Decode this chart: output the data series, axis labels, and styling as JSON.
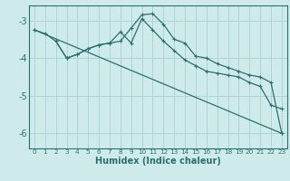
{
  "xlabel": "Humidex (Indice chaleur)",
  "bg_color": "#ceeaea",
  "grid_color": "#afd4d4",
  "line_color": "#2a7070",
  "ylim": [
    -6.4,
    -2.6
  ],
  "xlim": [
    -0.5,
    23.5
  ],
  "yticks": [
    -6,
    -5,
    -4,
    -3
  ],
  "xticks": [
    0,
    1,
    2,
    3,
    4,
    5,
    6,
    7,
    8,
    9,
    10,
    11,
    12,
    13,
    14,
    15,
    16,
    17,
    18,
    19,
    20,
    21,
    22,
    23
  ],
  "curve1_x": [
    0,
    1,
    2,
    3,
    4,
    5,
    6,
    7,
    8,
    9,
    10,
    11,
    12,
    13,
    14,
    15,
    16,
    17,
    18,
    19,
    20,
    21,
    22,
    23
  ],
  "curve1_y": [
    -3.25,
    -3.35,
    -3.55,
    -4.0,
    -3.9,
    -3.75,
    -3.65,
    -3.6,
    -3.55,
    -3.2,
    -2.85,
    -2.82,
    -3.1,
    -3.5,
    -3.6,
    -3.95,
    -4.0,
    -4.15,
    -4.25,
    -4.35,
    -4.45,
    -4.5,
    -4.65,
    -6.0
  ],
  "curve2_x": [
    2,
    3,
    4,
    5,
    6,
    7,
    8,
    9,
    10,
    11,
    12,
    13,
    14,
    15,
    16,
    17,
    18,
    19,
    20,
    21,
    22,
    23
  ],
  "curve2_y": [
    -3.55,
    -4.0,
    -3.9,
    -3.75,
    -3.65,
    -3.6,
    -3.3,
    -3.6,
    -2.95,
    -3.25,
    -3.55,
    -3.8,
    -4.05,
    -4.2,
    -4.35,
    -4.4,
    -4.45,
    -4.5,
    -4.65,
    -4.75,
    -5.25,
    -5.35
  ],
  "curve3_x": [
    0,
    23
  ],
  "curve3_y": [
    -3.25,
    -6.0
  ]
}
